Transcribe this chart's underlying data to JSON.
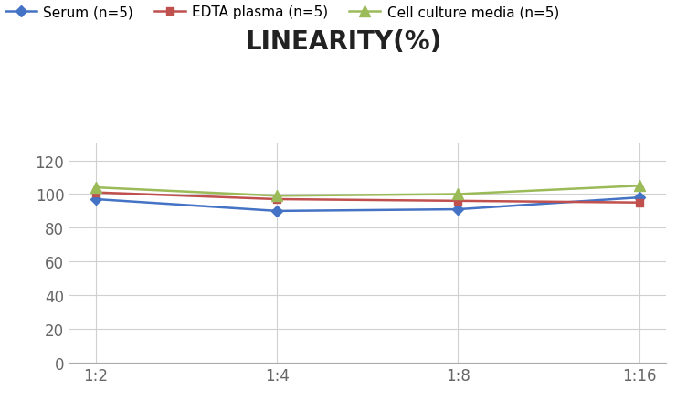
{
  "title": "LINEARITY(%)",
  "x_labels": [
    "1:2",
    "1:4",
    "1:8",
    "1:16"
  ],
  "x_positions": [
    0,
    1,
    2,
    3
  ],
  "series": [
    {
      "label": "Serum (n=5)",
      "values": [
        97,
        90,
        91,
        98
      ],
      "color": "#4472C4",
      "marker": "D",
      "marker_size": 6,
      "linewidth": 1.8
    },
    {
      "label": "EDTA plasma (n=5)",
      "values": [
        101,
        97,
        96,
        95
      ],
      "color": "#C0504D",
      "marker": "s",
      "marker_size": 6,
      "linewidth": 1.8
    },
    {
      "label": "Cell culture media (n=5)",
      "values": [
        104,
        99,
        100,
        105
      ],
      "color": "#9BBB59",
      "marker": "^",
      "marker_size": 8,
      "linewidth": 1.8
    }
  ],
  "ylim": [
    0,
    130
  ],
  "yticks": [
    0,
    20,
    40,
    60,
    80,
    100,
    120
  ],
  "background_color": "#ffffff",
  "grid_color": "#d0d0d0",
  "title_fontsize": 20,
  "legend_fontsize": 11,
  "tick_fontsize": 12
}
